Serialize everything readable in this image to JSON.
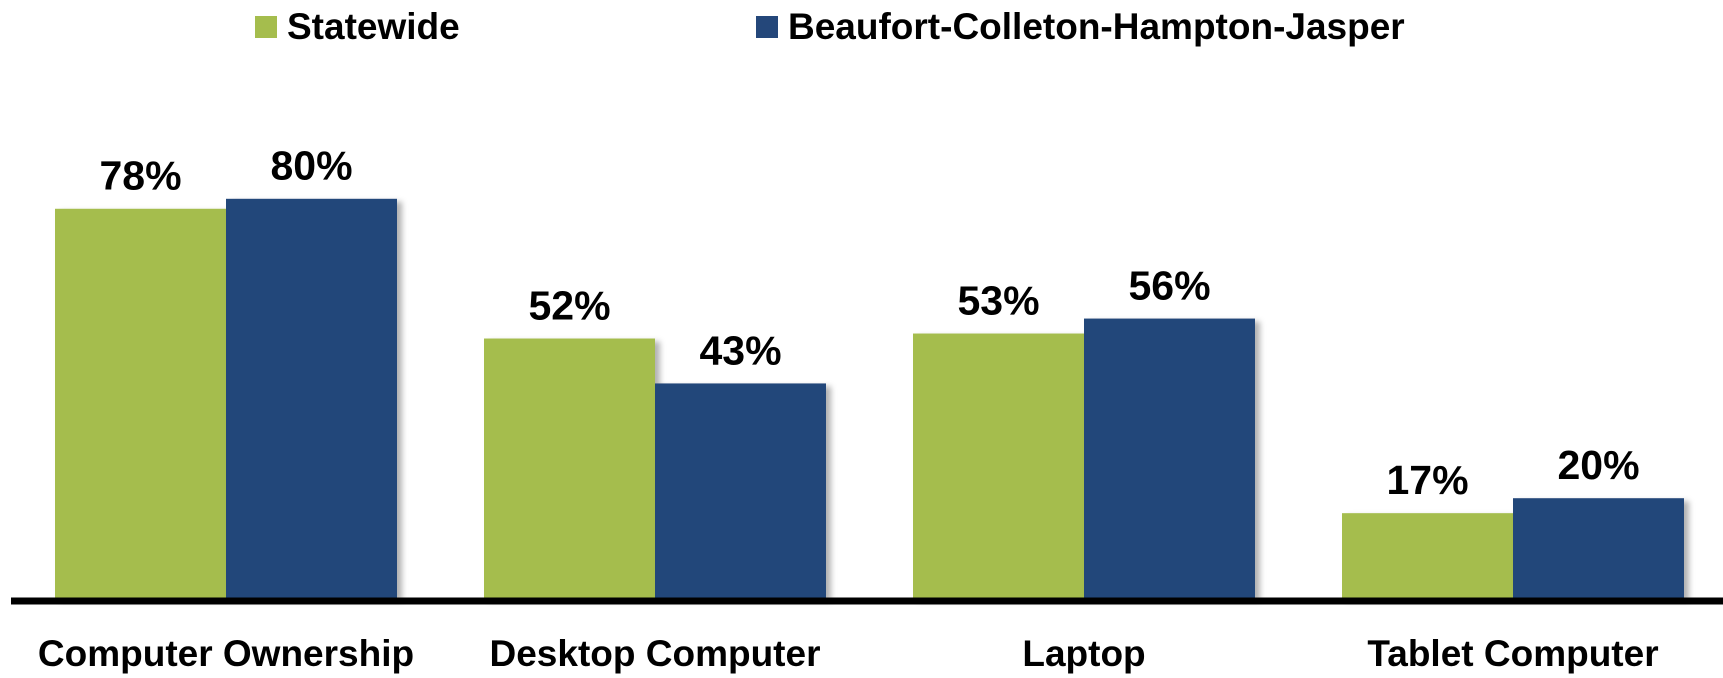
{
  "chart_data": {
    "type": "bar",
    "categories": [
      "Computer Ownership",
      "Desktop Computer",
      "Laptop",
      "Tablet Computer"
    ],
    "series": [
      {
        "name": "Statewide",
        "color": "#a5bd4d",
        "values": [
          78,
          52,
          53,
          17
        ],
        "value_labels": [
          "78%",
          "52%",
          "53%",
          "17%"
        ]
      },
      {
        "name": "Beaufort-Colleton-Hampton-Jasper",
        "color": "#24477a",
        "values": [
          80,
          43,
          56,
          20
        ],
        "value_labels": [
          "80%",
          "43%",
          "56%",
          "20%"
        ]
      }
    ],
    "ylim": [
      0,
      100
    ],
    "legend": "top"
  }
}
